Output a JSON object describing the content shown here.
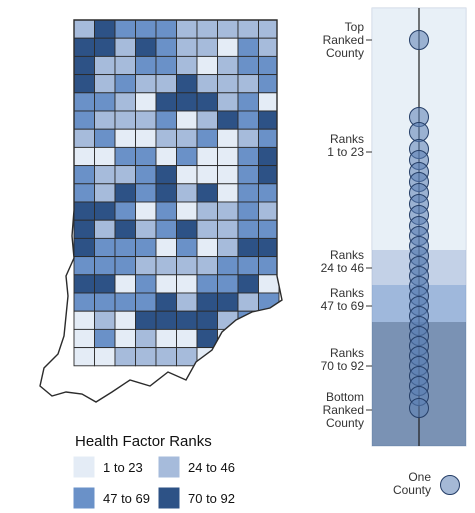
{
  "colors": {
    "rank_1_23": "#e4ecf6",
    "rank_24_46": "#a6bbdb",
    "rank_47_69": "#6a91c8",
    "rank_70_92": "#2d5286",
    "county_border": "#2b2b2b",
    "strip_line": "#1f1f1f",
    "dot_fill": "#5b7fb5",
    "dot_stroke": "#243d66"
  },
  "legend": {
    "title": "Health Factor Ranks",
    "items": [
      {
        "label": "1 to 23",
        "color_key": "rank_1_23"
      },
      {
        "label": "24 to 46",
        "color_key": "rank_24_46"
      },
      {
        "label": "47 to 69",
        "color_key": "rank_47_69"
      },
      {
        "label": "70 to 92",
        "color_key": "rank_70_92"
      }
    ]
  },
  "strip": {
    "labels": [
      {
        "lines": [
          "Top",
          "Ranked",
          "County"
        ]
      },
      {
        "lines": [
          "Ranks",
          "1 to 23"
        ]
      },
      {
        "lines": [
          "Ranks",
          "24 to 46"
        ]
      },
      {
        "lines": [
          "Ranks",
          "47 to 69"
        ]
      },
      {
        "lines": [
          "Ranks",
          "70 to 92"
        ]
      },
      {
        "lines": [
          "Bottom",
          "Ranked",
          "County"
        ]
      }
    ],
    "bands": [
      {
        "range": "1 to 23",
        "color_key": "rank_1_23"
      },
      {
        "range": "24 to 46",
        "color_key": "rank_24_46"
      },
      {
        "range": "47 to 69",
        "color_key": "rank_47_69"
      },
      {
        "range": "70 to 92",
        "color_key": "rank_70_92"
      }
    ],
    "one_county_label": [
      "One",
      "County"
    ]
  },
  "map": {
    "region": "Indiana counties",
    "county_count": 92
  }
}
